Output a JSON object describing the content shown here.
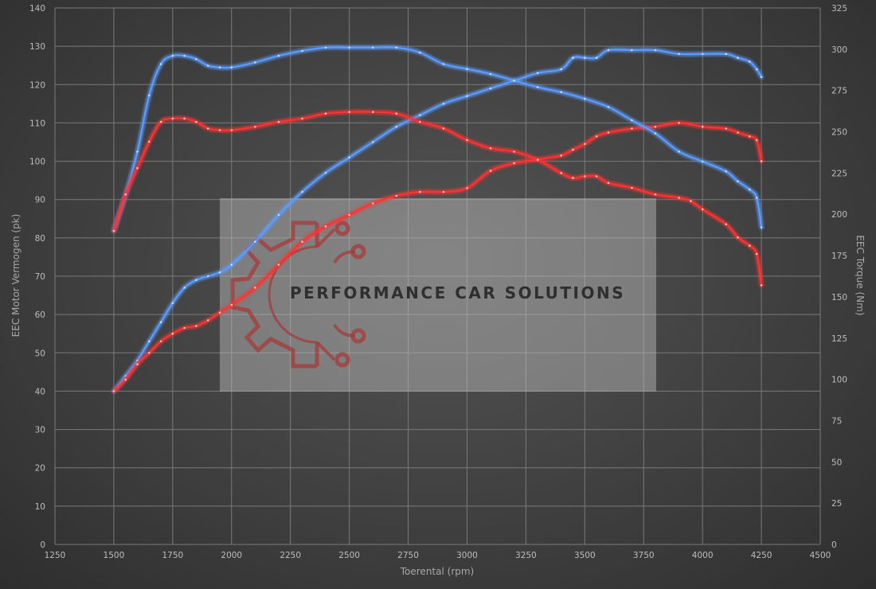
{
  "chart_data": {
    "type": "line",
    "xlabel": "Toerental (rpm)",
    "ylabel_left": "EEC Motor Vermogen (pk)",
    "ylabel_right": "EEC Torque (Nm)",
    "xlim": [
      1250,
      4500
    ],
    "ylim_left": [
      0,
      140
    ],
    "ylim_right": [
      0,
      325
    ],
    "x_ticks": [
      1250,
      1500,
      1750,
      2000,
      2250,
      2500,
      2750,
      3000,
      3250,
      3500,
      3750,
      4000,
      4250,
      4500
    ],
    "y_left_ticks": [
      0,
      10,
      20,
      30,
      40,
      50,
      60,
      70,
      80,
      90,
      100,
      110,
      120,
      130,
      140
    ],
    "y_right_ticks": [
      0,
      25,
      50,
      75,
      100,
      125,
      150,
      175,
      200,
      225,
      250,
      275,
      300,
      325
    ],
    "grid": true,
    "colors": {
      "blue": "#5a9cff",
      "red": "#ff3333"
    },
    "series": [
      {
        "axis": "left",
        "color": "blue",
        "x": [
          1500,
          1550,
          1600,
          1650,
          1700,
          1750,
          1800,
          1850,
          1900,
          1950,
          2000,
          2100,
          2200,
          2300,
          2400,
          2500,
          2600,
          2700,
          2800,
          2900,
          3000,
          3100,
          3200,
          3300,
          3400,
          3450,
          3500,
          3550,
          3600,
          3700,
          3800,
          3900,
          4000,
          4100,
          4150,
          4200,
          4230,
          4250
        ],
        "values": [
          40,
          44,
          48,
          53,
          58,
          63,
          67,
          69,
          70,
          71,
          73,
          79,
          86,
          92,
          97,
          101,
          105,
          109,
          112,
          115,
          117,
          119,
          121,
          123,
          124,
          127,
          127,
          127,
          129,
          129,
          129,
          128,
          128,
          128,
          127,
          126,
          124,
          122
        ]
      },
      {
        "axis": "left",
        "color": "red",
        "x": [
          1500,
          1550,
          1600,
          1650,
          1700,
          1750,
          1800,
          1850,
          1900,
          1950,
          2000,
          2100,
          2200,
          2300,
          2400,
          2500,
          2600,
          2700,
          2800,
          2900,
          3000,
          3100,
          3200,
          3300,
          3400,
          3450,
          3500,
          3550,
          3600,
          3700,
          3800,
          3900,
          4000,
          4100,
          4150,
          4200,
          4230,
          4250
        ],
        "values": [
          40,
          43,
          47,
          50,
          53,
          55,
          56.5,
          57,
          58.5,
          60.5,
          62.5,
          67,
          73,
          79,
          83,
          86,
          89,
          91,
          92,
          92,
          93,
          97.5,
          99.5,
          100.5,
          101.5,
          103,
          104.5,
          106.5,
          107.5,
          108.5,
          109,
          110,
          109,
          108.5,
          107.5,
          106.5,
          105.5,
          100
        ]
      },
      {
        "axis": "right",
        "color": "blue",
        "x": [
          1500,
          1550,
          1600,
          1650,
          1700,
          1750,
          1800,
          1850,
          1900,
          1950,
          2000,
          2100,
          2200,
          2300,
          2400,
          2500,
          2600,
          2700,
          2800,
          2900,
          3000,
          3100,
          3200,
          3300,
          3400,
          3500,
          3600,
          3700,
          3800,
          3900,
          4000,
          4100,
          4150,
          4200,
          4230,
          4250
        ],
        "values": [
          190,
          212,
          238,
          272,
          291,
          296,
          296,
          294,
          290,
          289,
          289,
          292,
          296,
          299,
          301,
          301,
          301,
          301,
          298,
          291,
          288,
          285,
          281,
          277,
          274,
          270,
          265,
          257,
          249,
          238,
          232,
          226,
          220,
          215,
          210,
          192
        ]
      },
      {
        "axis": "right",
        "color": "red",
        "x": [
          1500,
          1550,
          1600,
          1650,
          1700,
          1750,
          1800,
          1850,
          1900,
          1950,
          2000,
          2100,
          2200,
          2300,
          2400,
          2500,
          2600,
          2700,
          2800,
          2900,
          3000,
          3100,
          3200,
          3300,
          3400,
          3450,
          3500,
          3550,
          3600,
          3700,
          3800,
          3900,
          3950,
          4000,
          4100,
          4150,
          4200,
          4230,
          4250
        ],
        "values": [
          190,
          212,
          228,
          244,
          256,
          258,
          258,
          256,
          252,
          251,
          251,
          253,
          256,
          258,
          261,
          262,
          262,
          261,
          256,
          252,
          245,
          240,
          238,
          233,
          225,
          222,
          223,
          223,
          219,
          216,
          212,
          210,
          208,
          203,
          194,
          186,
          181,
          176,
          157
        ]
      }
    ]
  },
  "watermark": {
    "text": "PERFORMANCE CAR SOLUTIONS"
  }
}
